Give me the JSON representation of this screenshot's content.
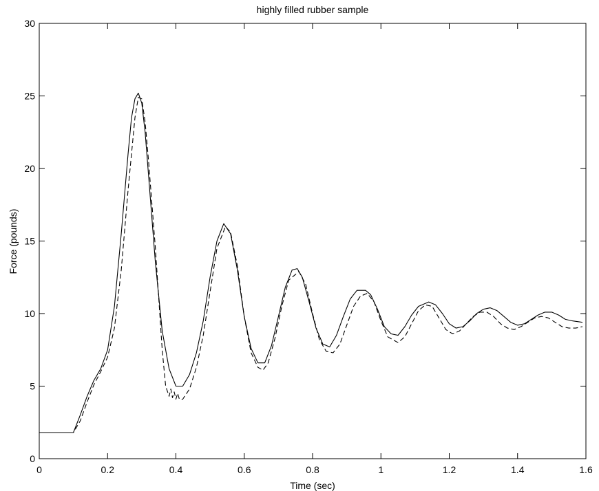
{
  "chart_data": {
    "type": "line",
    "title": "highly filled rubber sample",
    "xlabel": "Time (sec)",
    "ylabel": "Force (pounds)",
    "xlim": [
      0,
      1.6
    ],
    "ylim": [
      0,
      30
    ],
    "xticks": [
      "0",
      "0.2",
      "0.4",
      "0.6",
      "0.8",
      "1",
      "1.2",
      "1.4",
      "1.6"
    ],
    "yticks": [
      "0",
      "5",
      "10",
      "15",
      "20",
      "25",
      "30"
    ],
    "grid": false,
    "legend": "none",
    "series": [
      {
        "style": "solid",
        "color": "#000000",
        "x": [
          0,
          0.1,
          0.12,
          0.14,
          0.16,
          0.18,
          0.2,
          0.22,
          0.24,
          0.26,
          0.27,
          0.28,
          0.29,
          0.3,
          0.31,
          0.32,
          0.34,
          0.36,
          0.38,
          0.4,
          0.42,
          0.44,
          0.46,
          0.48,
          0.5,
          0.52,
          0.54,
          0.56,
          0.58,
          0.6,
          0.62,
          0.64,
          0.66,
          0.68,
          0.7,
          0.72,
          0.74,
          0.755,
          0.77,
          0.79,
          0.81,
          0.83,
          0.85,
          0.87,
          0.89,
          0.91,
          0.93,
          0.955,
          0.97,
          0.99,
          1.01,
          1.03,
          1.05,
          1.07,
          1.09,
          1.11,
          1.14,
          1.16,
          1.18,
          1.2,
          1.22,
          1.24,
          1.26,
          1.28,
          1.3,
          1.32,
          1.34,
          1.36,
          1.38,
          1.4,
          1.42,
          1.44,
          1.46,
          1.48,
          1.5,
          1.52,
          1.54,
          1.56,
          1.59
        ],
        "y": [
          1.8,
          1.8,
          3.0,
          4.3,
          5.4,
          6.2,
          7.5,
          10.5,
          15.5,
          21.0,
          23.5,
          24.8,
          25.2,
          24.5,
          22.5,
          19.5,
          13.5,
          8.8,
          6.2,
          5.0,
          5.0,
          5.8,
          7.3,
          9.5,
          12.5,
          15.0,
          16.2,
          15.5,
          13.0,
          9.8,
          7.6,
          6.6,
          6.6,
          7.8,
          9.8,
          11.8,
          13.0,
          13.1,
          12.5,
          10.8,
          9.0,
          7.9,
          7.7,
          8.5,
          9.8,
          11.0,
          11.6,
          11.6,
          11.3,
          10.3,
          9.1,
          8.6,
          8.5,
          9.1,
          9.9,
          10.5,
          10.8,
          10.6,
          10.0,
          9.3,
          9.0,
          9.1,
          9.5,
          10.0,
          10.3,
          10.4,
          10.2,
          9.8,
          9.4,
          9.2,
          9.3,
          9.6,
          9.9,
          10.1,
          10.1,
          9.9,
          9.6,
          9.5,
          9.4
        ]
      },
      {
        "style": "dashed",
        "color": "#000000",
        "x": [
          0,
          0.1,
          0.12,
          0.14,
          0.16,
          0.18,
          0.2,
          0.22,
          0.24,
          0.26,
          0.28,
          0.29,
          0.3,
          0.31,
          0.32,
          0.34,
          0.36,
          0.37,
          0.38,
          0.385,
          0.39,
          0.395,
          0.4,
          0.405,
          0.41,
          0.42,
          0.44,
          0.46,
          0.48,
          0.5,
          0.52,
          0.545,
          0.56,
          0.58,
          0.6,
          0.62,
          0.64,
          0.655,
          0.67,
          0.69,
          0.71,
          0.73,
          0.76,
          0.78,
          0.8,
          0.82,
          0.84,
          0.86,
          0.88,
          0.9,
          0.92,
          0.94,
          0.96,
          0.98,
          1.0,
          1.02,
          1.05,
          1.07,
          1.09,
          1.11,
          1.13,
          1.15,
          1.17,
          1.19,
          1.21,
          1.23,
          1.25,
          1.27,
          1.29,
          1.31,
          1.33,
          1.35,
          1.37,
          1.39,
          1.41,
          1.43,
          1.45,
          1.47,
          1.49,
          1.51,
          1.53,
          1.55,
          1.57,
          1.59
        ],
        "y": [
          1.8,
          1.8,
          2.6,
          3.9,
          5.1,
          6.0,
          7.0,
          9.0,
          13.0,
          18.5,
          23.5,
          24.9,
          24.8,
          23.2,
          20.5,
          14.5,
          7.5,
          5.0,
          4.3,
          4.8,
          4.2,
          4.6,
          4.1,
          4.5,
          4.1,
          4.1,
          4.8,
          6.3,
          8.5,
          11.5,
          14.5,
          16.0,
          15.6,
          13.3,
          9.8,
          7.3,
          6.3,
          6.1,
          6.6,
          8.3,
          10.5,
          12.3,
          12.9,
          12.0,
          10.0,
          8.2,
          7.4,
          7.3,
          7.9,
          9.2,
          10.5,
          11.2,
          11.4,
          10.8,
          9.5,
          8.4,
          8.0,
          8.4,
          9.3,
          10.2,
          10.6,
          10.5,
          9.7,
          8.9,
          8.6,
          8.8,
          9.3,
          9.8,
          10.1,
          10.1,
          9.8,
          9.3,
          9.0,
          8.9,
          9.1,
          9.4,
          9.7,
          9.8,
          9.7,
          9.4,
          9.1,
          9.0,
          9.0,
          9.1
        ]
      }
    ]
  }
}
